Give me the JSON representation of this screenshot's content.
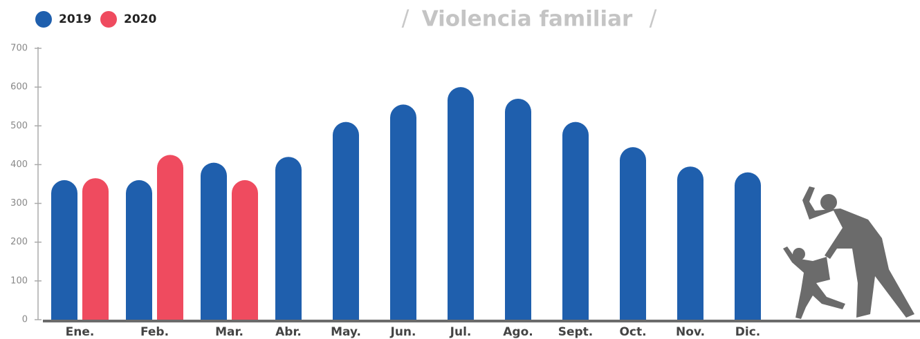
{
  "chart_data": {
    "type": "bar",
    "title": "Violencia familiar",
    "categories": [
      "Ene.",
      "Feb.",
      "Mar.",
      "Abr.",
      "May.",
      "Jun.",
      "Jul.",
      "Ago.",
      "Sept.",
      "Oct.",
      "Nov.",
      "Dic."
    ],
    "series": [
      {
        "name": "2019",
        "color": "#1f5fad",
        "values": [
          360,
          360,
          405,
          420,
          510,
          555,
          600,
          570,
          510,
          445,
          395,
          380
        ]
      },
      {
        "name": "2020",
        "color": "#ef4b5f",
        "values": [
          365,
          425,
          360,
          null,
          null,
          null,
          null,
          null,
          null,
          null,
          null,
          null
        ]
      }
    ],
    "ylim": [
      0,
      700
    ],
    "yticks": [
      0,
      100,
      200,
      300,
      400,
      500,
      600,
      700
    ],
    "grid": false
  }
}
